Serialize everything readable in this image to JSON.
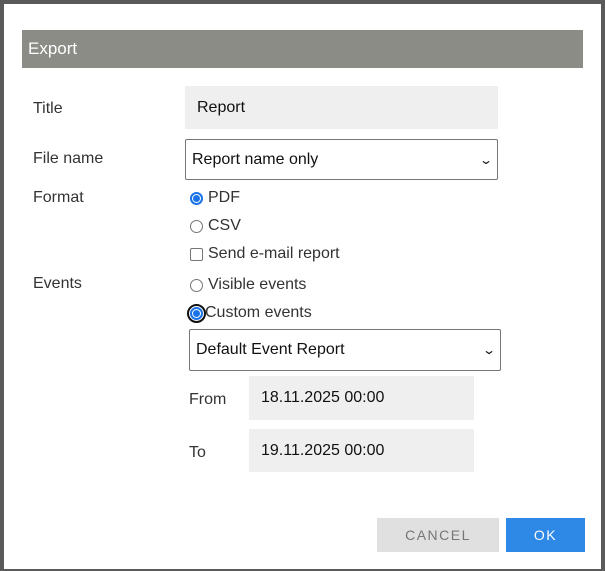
{
  "dialog": {
    "title": "Export",
    "title_label": "Title",
    "title_value": "Report",
    "file_name_label": "File name",
    "file_name_value": "Report name only",
    "format_label": "Format",
    "format_options": [
      {
        "label": "PDF",
        "selected": true
      },
      {
        "label": "CSV",
        "selected": false
      }
    ],
    "send_email_label": "Send e-mail report",
    "send_email_checked": false,
    "events_label": "Events",
    "events_options": [
      {
        "label": "Visible events",
        "selected": false
      },
      {
        "label": "Custom events",
        "selected": true
      }
    ],
    "event_report_value": "Default Event Report",
    "from_label": "From",
    "from_value": "18.11.2025 00:00",
    "to_label": "To",
    "to_value": "19.11.2025 00:00",
    "cancel_label": "CANCEL",
    "ok_label": "OK"
  },
  "colors": {
    "header": "#8c8c87",
    "primary": "#2e88e5",
    "cancel": "#e0e0e0"
  }
}
